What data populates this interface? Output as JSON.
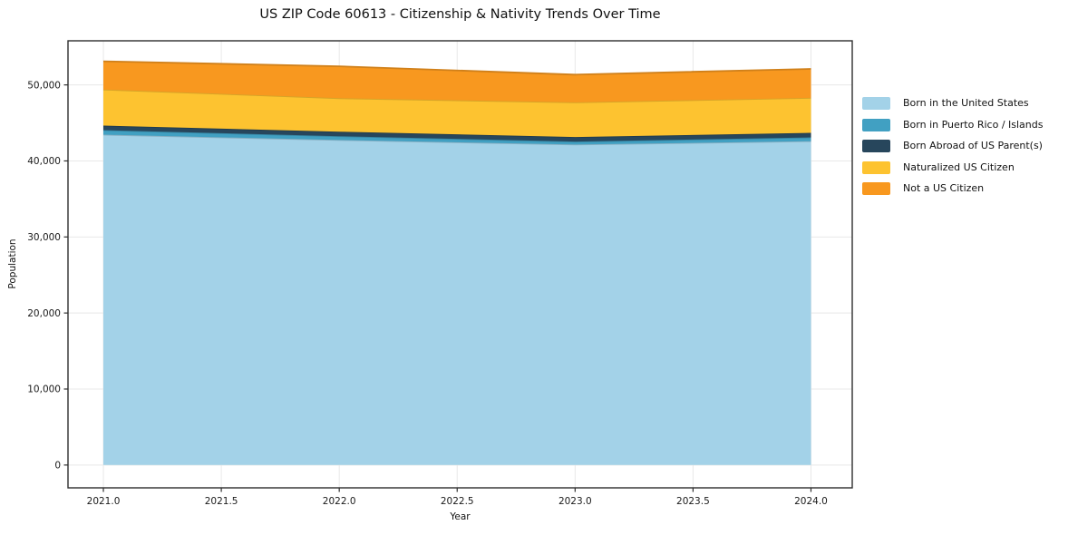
{
  "chart_data": {
    "type": "area",
    "title": "US ZIP Code 60613 - Citizenship & Nativity Trends Over Time",
    "xlabel": "Year",
    "ylabel": "Population",
    "x": [
      2021,
      2022,
      2023,
      2024
    ],
    "series": [
      {
        "name": "Born in the United States",
        "color": "#a3d2e8",
        "values": [
          43450,
          42750,
          42150,
          42600
        ]
      },
      {
        "name": "Born in Puerto Rico / Islands",
        "color": "#41a0c2",
        "values": [
          600,
          500,
          400,
          500
        ]
      },
      {
        "name": "Born Abroad of US Parent(s)",
        "color": "#27465c",
        "values": [
          600,
          600,
          600,
          600
        ]
      },
      {
        "name": "Naturalized US Citizen",
        "color": "#fdc330",
        "values": [
          4750,
          4400,
          4550,
          4600
        ]
      },
      {
        "name": "Not a US Citizen",
        "color": "#f8981f",
        "values": [
          3700,
          4200,
          3650,
          3800
        ]
      }
    ],
    "xlim": [
      2020.85,
      2024.175
    ],
    "ylim": [
      -3000,
      55800
    ],
    "x_ticks": {
      "values": [
        2021,
        2021.5,
        2022,
        2022.5,
        2023,
        2023.5,
        2024
      ],
      "labels": [
        "2021.0",
        "2021.5",
        "2022.0",
        "2022.5",
        "2023.0",
        "2023.5",
        "2024.0"
      ]
    },
    "y_ticks": {
      "values": [
        0,
        10000,
        20000,
        30000,
        40000,
        50000
      ],
      "labels": [
        "0",
        "10,000",
        "20,000",
        "30,000",
        "40,000",
        "50,000"
      ]
    },
    "grid": true,
    "legend_position": "right-outside"
  },
  "colors": {
    "grid": "#e8e8e8",
    "spine": "#2e2e2e",
    "tick_text": "#1a1a1a",
    "background": "#ffffff"
  }
}
